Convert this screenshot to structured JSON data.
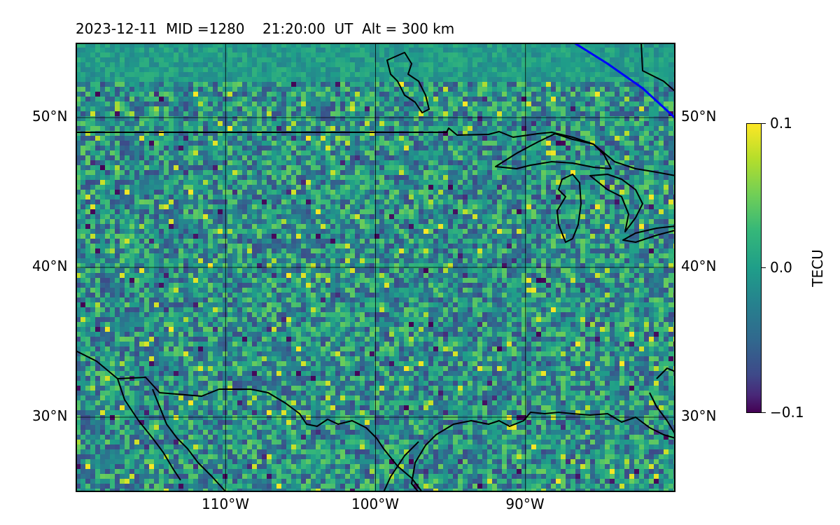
{
  "title": {
    "date": "2023-12-11",
    "mid": "MID =1280",
    "time": "21:20:00",
    "time_unit": "UT",
    "altitude": "Alt = 300 km"
  },
  "map": {
    "lat_labels": [
      "50°N",
      "40°N",
      "30°N"
    ],
    "lon_labels": [
      "110°W",
      "100°W",
      "90°W"
    ],
    "lat_range": [
      25,
      55
    ],
    "lon_range": [
      -120,
      -80
    ],
    "grid_lats": [
      30,
      40,
      50
    ],
    "grid_lons": [
      -110,
      -100,
      -90
    ],
    "coastline_color": "#000000",
    "terminator_color": "#0000ff"
  },
  "colorbar": {
    "label": "TECU",
    "max_label": "0.1",
    "mid_label": "0.0",
    "min_label": "−0.1",
    "colormap": "viridis",
    "range": [
      -0.1,
      0.1
    ]
  }
}
